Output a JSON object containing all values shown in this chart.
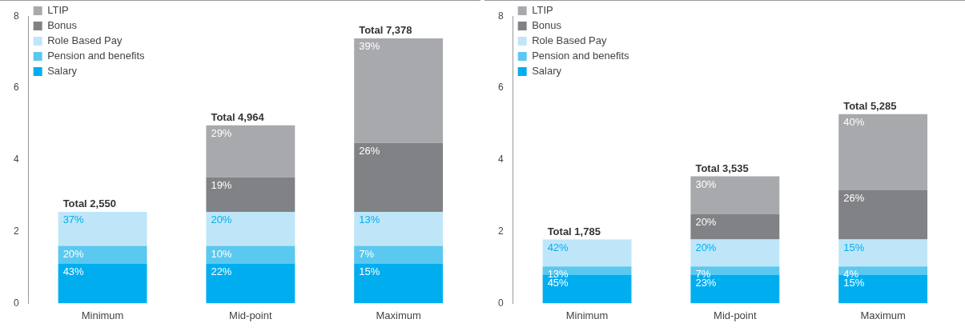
{
  "chart_data": [
    {
      "type": "bar",
      "stacked": true,
      "categories": [
        "Minimum",
        "Mid-point",
        "Maximum"
      ],
      "ylim": [
        0,
        8
      ],
      "yticks": [
        0,
        2,
        4,
        6,
        8
      ],
      "grid": false,
      "legend": "top left",
      "series": [
        {
          "name": "Salary",
          "color": "#00aeef",
          "values": [
            1.1,
            1.1,
            1.1
          ]
        },
        {
          "name": "Pension and benefits",
          "color": "#5bc8f0",
          "values": [
            0.5,
            0.5,
            0.5
          ]
        },
        {
          "name": "Role Based Pay",
          "color": "#bfe6f8",
          "values": [
            0.95,
            0.95,
            0.95
          ]
        },
        {
          "name": "Bonus",
          "color": "#808285",
          "values": [
            null,
            0.96,
            1.92
          ]
        },
        {
          "name": "LTIP",
          "color": "#a7a9ac",
          "values": [
            null,
            1.45,
            2.91
          ]
        }
      ],
      "totals": [
        "Total 2,550",
        "Total 4,964",
        "Total 7,378"
      ],
      "annotations": [
        {
          "text": "43%",
          "x": "Minimum",
          "y": 1.1
        },
        {
          "text": "20%",
          "x": "Minimum",
          "y": 1.6
        },
        {
          "text": "37%",
          "x": "Minimum",
          "y": 2.55
        },
        {
          "text": "22%",
          "x": "Mid-point",
          "y": 1.1
        },
        {
          "text": "10%",
          "x": "Mid-point",
          "y": 1.6
        },
        {
          "text": "20%",
          "x": "Mid-point",
          "y": 2.55
        },
        {
          "text": "19%",
          "x": "Mid-point",
          "y": 3.51
        },
        {
          "text": "29%",
          "x": "Mid-point",
          "y": 4.96
        },
        {
          "text": "15%",
          "x": "Maximum",
          "y": 1.1
        },
        {
          "text": "7%",
          "x": "Maximum",
          "y": 1.6
        },
        {
          "text": "13%",
          "x": "Maximum",
          "y": 2.55
        },
        {
          "text": "26%",
          "x": "Maximum",
          "y": 4.47
        },
        {
          "text": "39%",
          "x": "Maximum",
          "y": 7.38
        }
      ]
    },
    {
      "type": "bar",
      "stacked": true,
      "categories": [
        "Minimum",
        "Mid-point",
        "Maximum"
      ],
      "ylim": [
        0,
        8
      ],
      "yticks": [
        0,
        2,
        4,
        6,
        8
      ],
      "grid": false,
      "legend": "top left",
      "series": [
        {
          "name": "Salary",
          "color": "#00aeef",
          "values": [
            0.8,
            0.8,
            0.8
          ]
        },
        {
          "name": "Pension and benefits",
          "color": "#5bc8f0",
          "values": [
            0.23,
            0.23,
            0.23
          ]
        },
        {
          "name": "Role Based Pay",
          "color": "#bfe6f8",
          "values": [
            0.75,
            0.75,
            0.75
          ]
        },
        {
          "name": "Bonus",
          "color": "#808285",
          "values": [
            null,
            0.71,
            1.37
          ]
        },
        {
          "name": "LTIP",
          "color": "#a7a9ac",
          "values": [
            null,
            1.05,
            2.12
          ]
        }
      ],
      "totals": [
        "Total 1,785",
        "Total 3,535",
        "Total 5,285"
      ],
      "annotations": [
        {
          "text": "45%",
          "x": "Minimum",
          "y": 0.8
        },
        {
          "text": "13%",
          "x": "Minimum",
          "y": 1.03
        },
        {
          "text": "42%",
          "x": "Minimum",
          "y": 1.78
        },
        {
          "text": "23%",
          "x": "Mid-point",
          "y": 0.8
        },
        {
          "text": "7%",
          "x": "Mid-point",
          "y": 1.03
        },
        {
          "text": "20%",
          "x": "Mid-point",
          "y": 1.78
        },
        {
          "text": "20%",
          "x": "Mid-point",
          "y": 2.49
        },
        {
          "text": "30%",
          "x": "Mid-point",
          "y": 3.54
        },
        {
          "text": "15%",
          "x": "Maximum",
          "y": 0.8
        },
        {
          "text": "4%",
          "x": "Maximum",
          "y": 1.03
        },
        {
          "text": "15%",
          "x": "Maximum",
          "y": 1.78
        },
        {
          "text": "26%",
          "x": "Maximum",
          "y": 3.15
        },
        {
          "text": "40%",
          "x": "Maximum",
          "y": 5.27
        }
      ]
    }
  ]
}
